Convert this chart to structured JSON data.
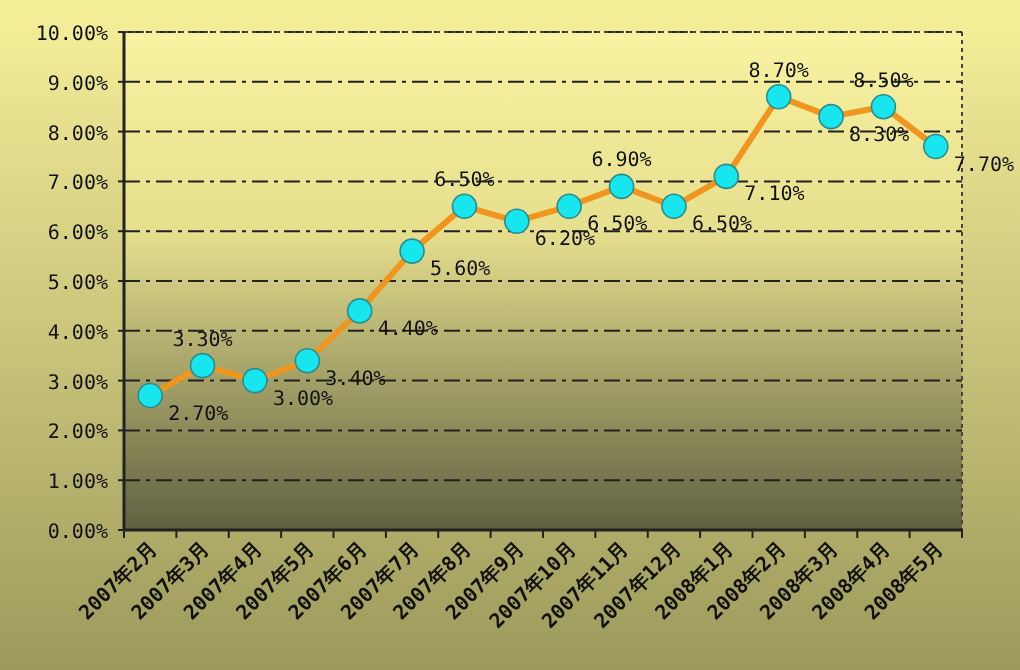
{
  "chart_data": {
    "type": "line",
    "categories": [
      "2007年2月",
      "2007年3月",
      "2007年4月",
      "2007年5月",
      "2007年6月",
      "2007年7月",
      "2007年8月",
      "2007年9月",
      "2007年10月",
      "2007年11月",
      "2007年12月",
      "2008年1月",
      "2008年2月",
      "2008年3月",
      "2008年4月",
      "2008年5月"
    ],
    "values": [
      2.7,
      3.3,
      3.0,
      3.4,
      4.4,
      5.6,
      6.5,
      6.2,
      6.5,
      6.9,
      6.5,
      7.1,
      8.7,
      8.3,
      8.5,
      7.7
    ],
    "value_labels": [
      "2.70%",
      "3.30%",
      "3.00%",
      "3.40%",
      "4.40%",
      "5.60%",
      "6.50%",
      "6.20%",
      "6.50%",
      "6.90%",
      "6.50%",
      "7.10%",
      "8.70%",
      "8.30%",
      "8.50%",
      "7.70%"
    ],
    "color": "#f0961e",
    "marker": "circle",
    "grid": "y",
    "ylim": [
      0,
      10
    ],
    "yticks": [
      {
        "value": 0,
        "label": "0.00%"
      },
      {
        "value": 1,
        "label": "1.00%"
      },
      {
        "value": 2,
        "label": "2.00%"
      },
      {
        "value": 3,
        "label": "3.00%"
      },
      {
        "value": 4,
        "label": "4.00%"
      },
      {
        "value": 5,
        "label": "5.00%"
      },
      {
        "value": 6,
        "label": "6.00%"
      },
      {
        "value": 7,
        "label": "7.00%"
      },
      {
        "value": 8,
        "label": "8.00%"
      },
      {
        "value": 9,
        "label": "9.00%"
      },
      {
        "value": 10,
        "label": "10.00%"
      }
    ]
  }
}
